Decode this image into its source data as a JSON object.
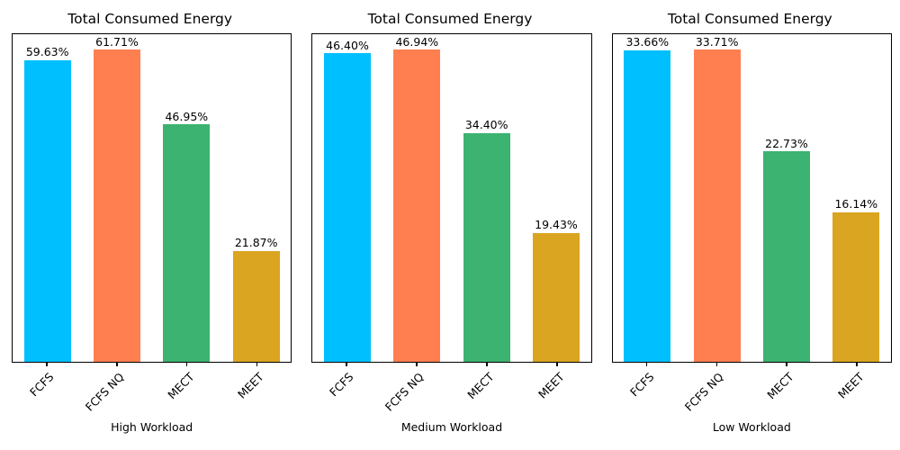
{
  "bar_colors": [
    "#00BFFF",
    "#FF7F50",
    "#3CB371",
    "#DAA520"
  ],
  "chart_data": [
    {
      "type": "bar",
      "title": "Total Consumed Energy",
      "categories": [
        "FCFS",
        "FCFS NQ",
        "MECT",
        "MEET"
      ],
      "values": [
        59.63,
        61.71,
        46.95,
        21.87
      ],
      "value_labels": [
        "59.63%",
        "61.71%",
        "46.95%",
        "21.87%"
      ],
      "xlabel": "High Workload",
      "ylabel": "",
      "ylim": [
        0,
        64.8
      ],
      "grid": false,
      "legend": "none"
    },
    {
      "type": "bar",
      "title": "Total Consumed Energy",
      "categories": [
        "FCFS",
        "FCFS NQ",
        "MECT",
        "MEET"
      ],
      "values": [
        46.4,
        46.94,
        34.4,
        19.43
      ],
      "value_labels": [
        "46.40%",
        "46.94%",
        "34.40%",
        "19.43%"
      ],
      "xlabel": "Medium Workload",
      "ylabel": "",
      "ylim": [
        0,
        49.29
      ],
      "grid": false,
      "legend": "none"
    },
    {
      "type": "bar",
      "title": "Total Consumed Energy",
      "categories": [
        "FCFS",
        "FCFS NQ",
        "MECT",
        "MEET"
      ],
      "values": [
        33.66,
        33.71,
        22.73,
        16.14
      ],
      "value_labels": [
        "33.66%",
        "33.71%",
        "22.73%",
        "16.14%"
      ],
      "xlabel": "Low Workload",
      "ylabel": "",
      "ylim": [
        0,
        35.4
      ],
      "grid": false,
      "legend": "none"
    }
  ]
}
